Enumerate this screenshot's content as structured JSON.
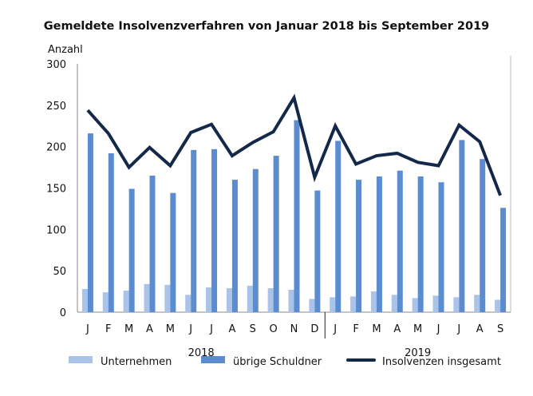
{
  "chart_data": {
    "type": "bar+line",
    "title": "Gemeldete Insolvenzverfahren von Januar 2018 bis September 2019",
    "ylabel": "Anzahl",
    "xlabel": "",
    "ylim": [
      0,
      300
    ],
    "yticks": [
      0,
      50,
      100,
      150,
      200,
      250,
      300
    ],
    "grid": false,
    "legend": "bottom",
    "categories": [
      "J",
      "F",
      "M",
      "A",
      "M",
      "J",
      "J",
      "A",
      "S",
      "O",
      "N",
      "D",
      "J",
      "F",
      "M",
      "A",
      "M",
      "J",
      "J",
      "A",
      "S"
    ],
    "years": [
      {
        "label": "2018",
        "count": 12
      },
      {
        "label": "2019",
        "count": 9
      }
    ],
    "series": [
      {
        "name": "Unternehmen",
        "type": "bar",
        "color": "#a9c4e8",
        "values": [
          28,
          24,
          26,
          34,
          33,
          21,
          30,
          29,
          32,
          29,
          27,
          16,
          18,
          19,
          25,
          21,
          17,
          20,
          18,
          21,
          15
        ]
      },
      {
        "name": "übrige Schuldner",
        "type": "bar",
        "color": "#5b8ccf",
        "values": [
          216,
          192,
          149,
          165,
          144,
          196,
          197,
          160,
          173,
          189,
          232,
          147,
          207,
          160,
          164,
          171,
          164,
          157,
          208,
          185,
          126
        ]
      },
      {
        "name": "Insolvenzen insgesamt",
        "type": "line",
        "color": "#14294a",
        "values": [
          244,
          216,
          175,
          199,
          177,
          217,
          227,
          189,
          205,
          218,
          259,
          163,
          225,
          179,
          189,
          192,
          181,
          177,
          226,
          206,
          141
        ]
      }
    ]
  }
}
